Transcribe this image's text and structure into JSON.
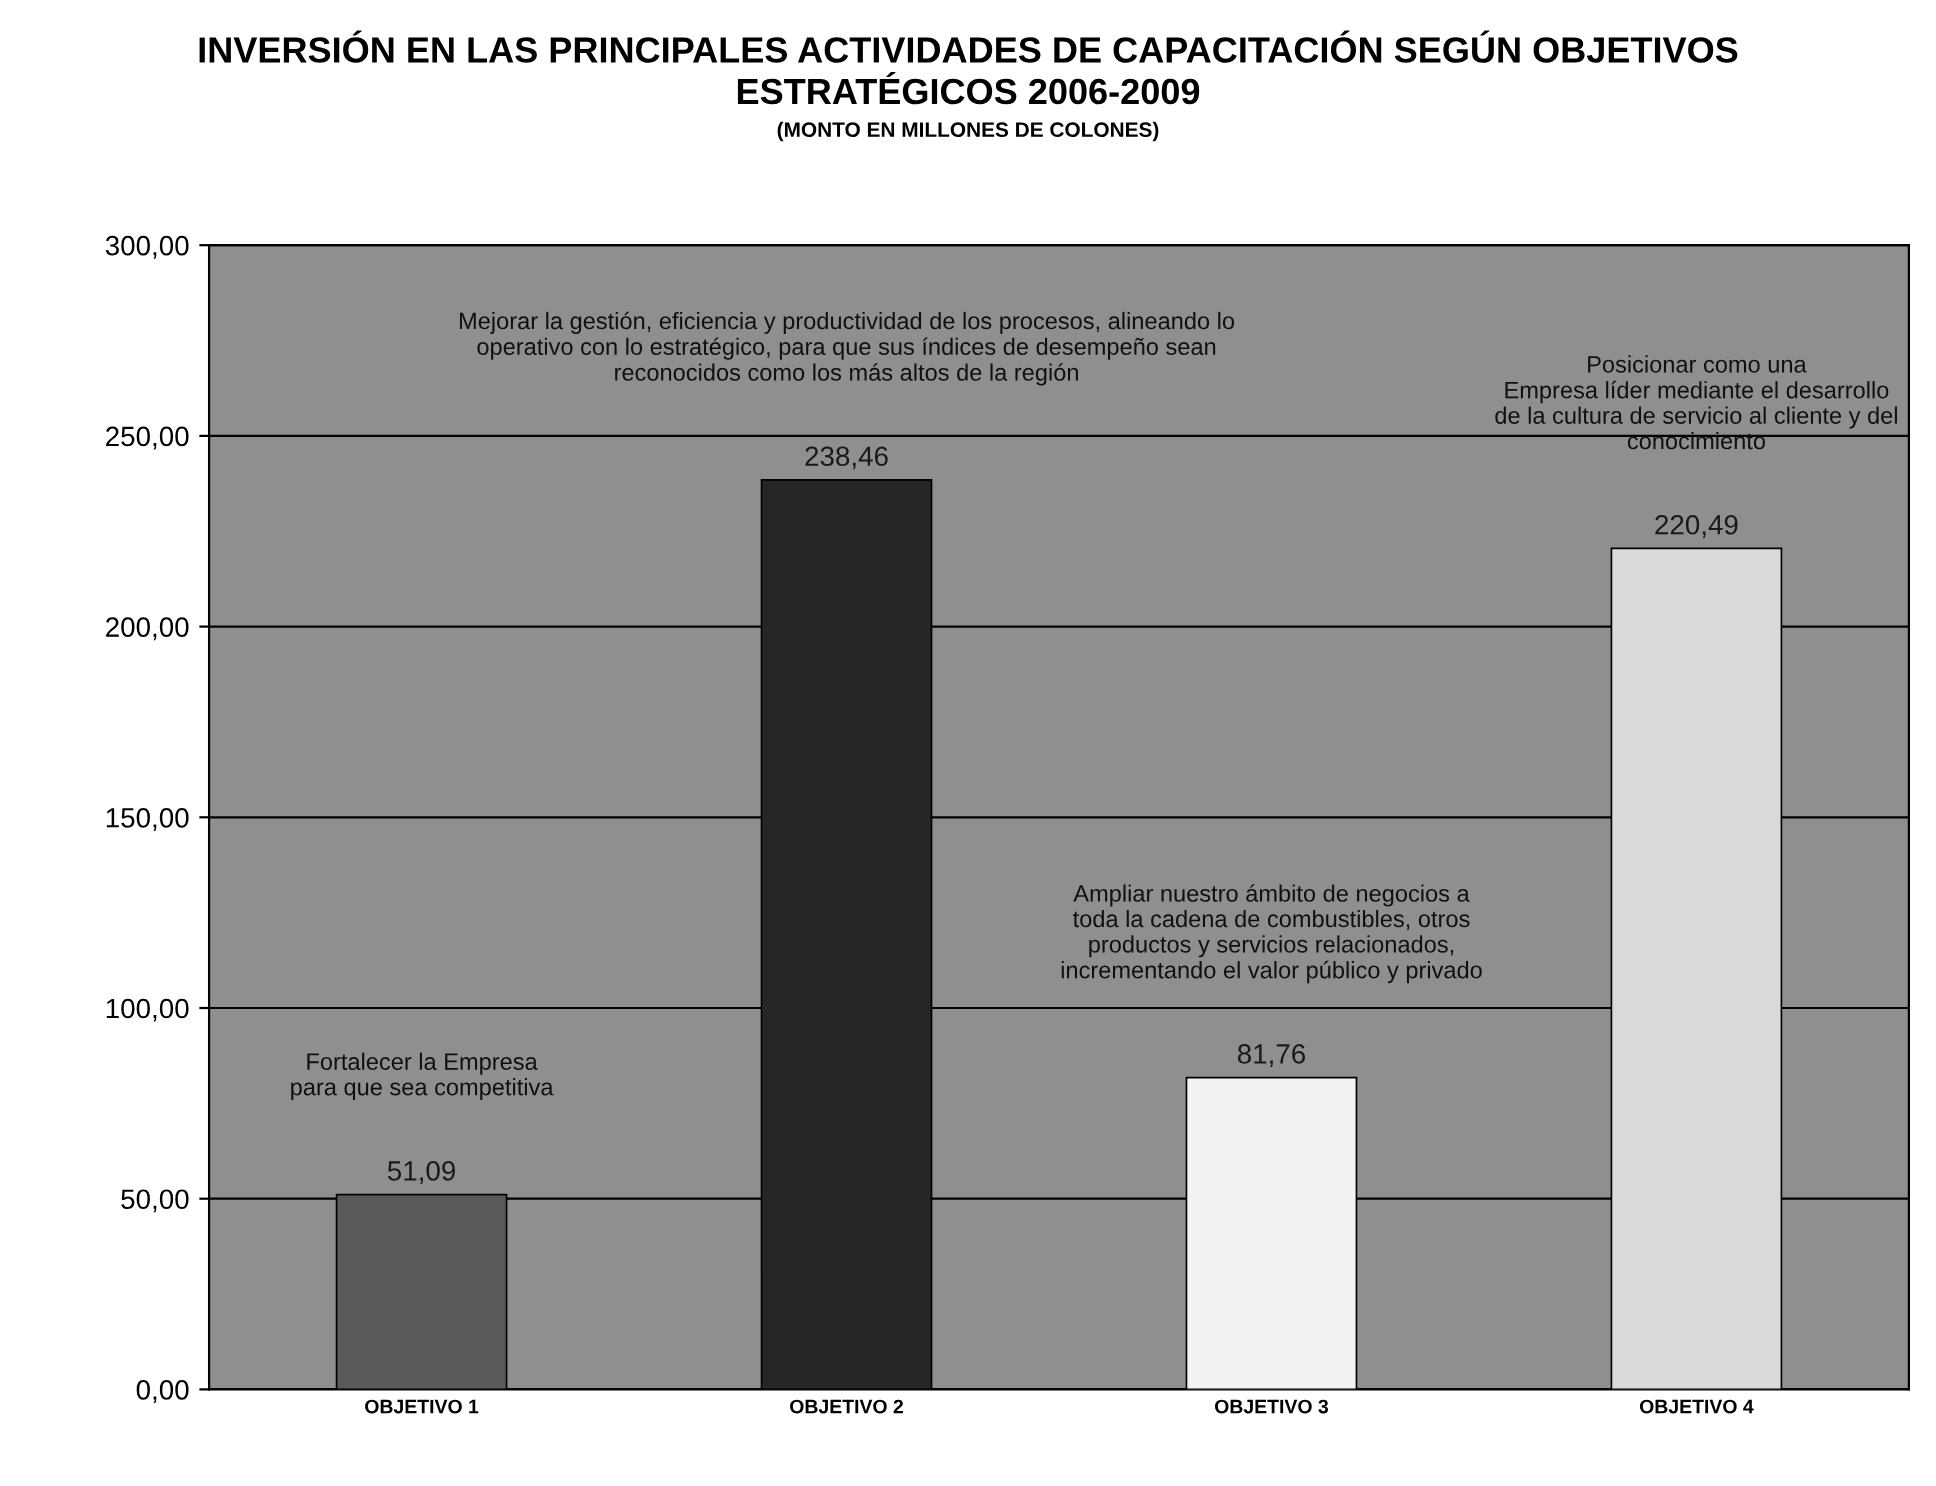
{
  "chart_data": {
    "type": "bar",
    "title": "INVERSIÓN EN LAS PRINCIPALES ACTIVIDADES DE CAPACITACIÓN SEGÚN OBJETIVOS\nESTRATÉGICOS 2006-2009",
    "subtitle": "(MONTO EN MILLONES DE COLONES)",
    "categories": [
      "OBJETIVO 1",
      "OBJETIVO 2",
      "OBJETIVO 3",
      "OBJETIVO 4"
    ],
    "values": [
      51.09,
      238.46,
      81.76,
      220.49
    ],
    "value_labels": [
      "51,09",
      "238,46",
      "81,76",
      "220,49"
    ],
    "colors": [
      "#5a5a5a",
      "#262626",
      "#f2f2f2",
      "#d9d9d9"
    ],
    "ylim": [
      0,
      300
    ],
    "yticks": [
      {
        "value": 0,
        "label": "0,00"
      },
      {
        "value": 50,
        "label": "50,00"
      },
      {
        "value": 100,
        "label": "100,00"
      },
      {
        "value": 150,
        "label": "150,00"
      },
      {
        "value": 200,
        "label": "200,00"
      },
      {
        "value": 250,
        "label": "250,00"
      },
      {
        "value": 300,
        "label": "300,00"
      }
    ],
    "grid": "y",
    "legend": false,
    "annotations": [
      "Fortalecer la Empresa\npara que sea competitiva",
      "Mejorar la gestión, eficiencia y productividad de los procesos, alineando lo\noperativo con lo estratégico, para que sus índices de desempeño sean\nreconocidos como los más altos de la región",
      "Ampliar nuestro ámbito de negocios a\ntoda la cadena de combustibles, otros\nproductos y servicios relacionados,\nincrementando el valor público y privado",
      "Posicionar como una\nEmpresa líder mediante el desarrollo\nde la cultura de servicio al cliente y del\nconocimiento"
    ]
  }
}
